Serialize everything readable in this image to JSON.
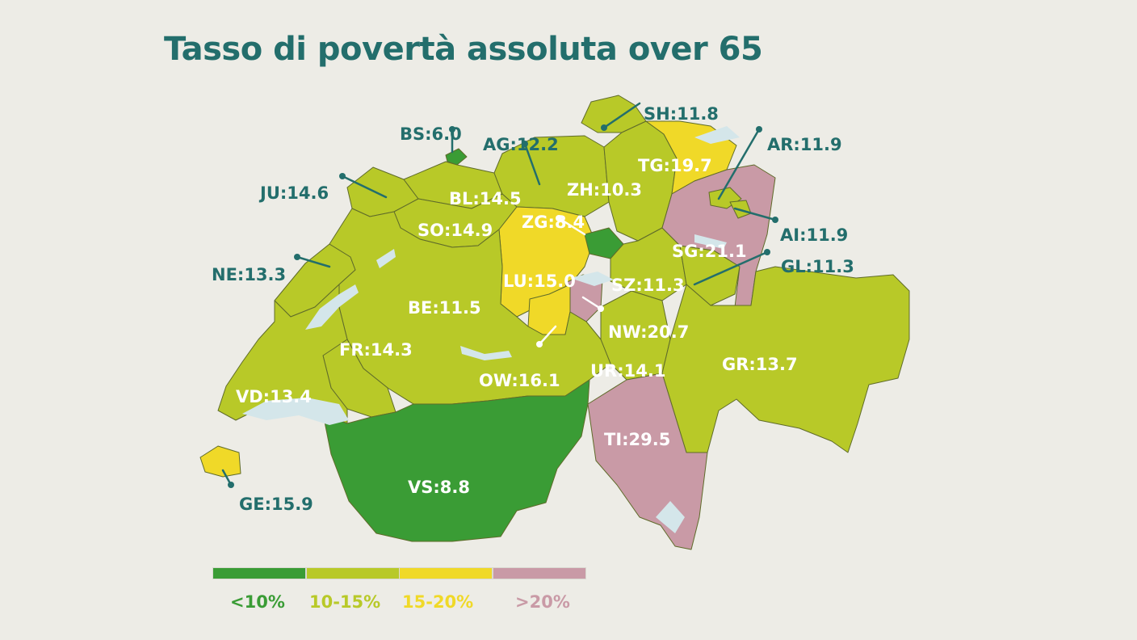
{
  "title": "Tasso di povertà assoluta over 65",
  "colors": {
    "lt10": "#3a9c35",
    "r10_15": "#b8c928",
    "r15_20": "#f0d928",
    "gt20": "#c99aa6",
    "lake": "#d4e6ea",
    "label_dark": "#236e6c",
    "background": "#edece6"
  },
  "legend": [
    {
      "label": "<10%",
      "color": "#3a9c35"
    },
    {
      "label": "10-15%",
      "color": "#b8c928"
    },
    {
      "label": "15-20%",
      "color": "#f0d928"
    },
    {
      "label": ">20%",
      "color": "#c99aa6"
    }
  ],
  "cantons": [
    {
      "code": "SH",
      "label": "SH:11.8",
      "value": 11.8
    },
    {
      "code": "BS",
      "label": "BS:6.0",
      "value": 6.0
    },
    {
      "code": "AG",
      "label": "AG:12.2",
      "value": 12.2
    },
    {
      "code": "AR",
      "label": "AR:11.9",
      "value": 11.9
    },
    {
      "code": "TG",
      "label": "TG:19.7",
      "value": 19.7
    },
    {
      "code": "JU",
      "label": "JU:14.6",
      "value": 14.6
    },
    {
      "code": "ZH",
      "label": "ZH:10.3",
      "value": 10.3
    },
    {
      "code": "BL",
      "label": "BL:14.5",
      "value": 14.5
    },
    {
      "code": "ZG",
      "label": "ZG:8.4",
      "value": 8.4
    },
    {
      "code": "AI",
      "label": "AI:11.9",
      "value": 11.9
    },
    {
      "code": "SO",
      "label": "SO:14.9",
      "value": 14.9
    },
    {
      "code": "SG",
      "label": "SG:21.1",
      "value": 21.1
    },
    {
      "code": "NE",
      "label": "NE:13.3",
      "value": 13.3
    },
    {
      "code": "GL",
      "label": "GL:11.3",
      "value": 11.3
    },
    {
      "code": "LU",
      "label": "LU:15.0",
      "value": 15.0
    },
    {
      "code": "SZ",
      "label": "SZ:11.3",
      "value": 11.3
    },
    {
      "code": "BE",
      "label": "BE:11.5",
      "value": 11.5
    },
    {
      "code": "NW",
      "label": "NW:20.7",
      "value": 20.7
    },
    {
      "code": "FR",
      "label": "FR:14.3",
      "value": 14.3
    },
    {
      "code": "UR",
      "label": "UR:14.1",
      "value": 14.1
    },
    {
      "code": "GR",
      "label": "GR:13.7",
      "value": 13.7
    },
    {
      "code": "OW",
      "label": "OW:16.1",
      "value": 16.1
    },
    {
      "code": "VD",
      "label": "VD:13.4",
      "value": 13.4
    },
    {
      "code": "TI",
      "label": "TI:29.5",
      "value": 29.5
    },
    {
      "code": "VS",
      "label": "VS:8.8",
      "value": 8.8
    },
    {
      "code": "GE",
      "label": "GE:15.9",
      "value": 15.9
    }
  ]
}
